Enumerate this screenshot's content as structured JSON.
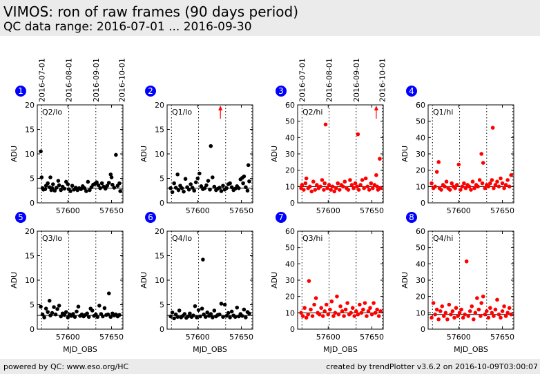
{
  "header": {
    "title": "VIMOS: ron of raw frames (90 days period)",
    "subtitle": "QC data range: 2016-07-01 ... 2016-09-30"
  },
  "footer": {
    "left": "powered by QC: www.eso.org/HC",
    "right": "created by trendPlotter v3.6.2 on 2016-10-09T03:00:07"
  },
  "colors": {
    "lo_series": "#000000",
    "hi_series": "#ff0000",
    "badge": "#0000ff",
    "header_bg": "#ebebeb"
  },
  "chart_data": [
    {
      "type": "scatter",
      "panel": "1",
      "label": "Q2/lo",
      "ylabel": "ADU",
      "xlabel": "",
      "xlim": [
        57565,
        57663
      ],
      "ylim": [
        0,
        20
      ],
      "xticks": [
        57600,
        57650
      ],
      "yticks": [
        0,
        5,
        10,
        15,
        20
      ],
      "top_dates": [
        "2016-07-01",
        "2016-08-01",
        "2016-09-01",
        "2016-10-01"
      ],
      "date_mjd": [
        57570,
        57601,
        57632,
        57662
      ],
      "reference": 3,
      "color": "#000000",
      "x": [
        57569,
        57570,
        57571,
        57572,
        57574,
        57575,
        57577,
        57579,
        57580,
        57581,
        57582,
        57583,
        57585,
        57587,
        57589,
        57590,
        57592,
        57594,
        57596,
        57598,
        57600,
        57601,
        57603,
        57605,
        57607,
        57609,
        57611,
        57613,
        57615,
        57617,
        57619,
        57621,
        57623,
        57625,
        57627,
        57629,
        57631,
        57633,
        57635,
        57637,
        57639,
        57641,
        57643,
        57645,
        57647,
        57649,
        57650,
        57651,
        57653,
        57655,
        57657,
        57659,
        57660
      ],
      "y": [
        10.5,
        5.2,
        3.0,
        2.7,
        2.8,
        3.5,
        4.0,
        3.2,
        5.2,
        2.6,
        3.0,
        3.8,
        2.5,
        3.1,
        4.5,
        3.6,
        2.6,
        3.3,
        2.9,
        4.3,
        3.8,
        2.8,
        2.4,
        3.5,
        2.7,
        3.1,
        2.6,
        3.0,
        2.8,
        3.4,
        3.0,
        2.4,
        4.3,
        2.6,
        3.2,
        3.7,
        3.9,
        4.2,
        3.6,
        3.0,
        4.0,
        3.3,
        2.9,
        3.5,
        4.1,
        5.8,
        5.2,
        3.7,
        3.1,
        9.8,
        3.5,
        4.0,
        2.4
      ]
    },
    {
      "type": "scatter",
      "panel": "2",
      "label": "Q1/lo",
      "ylabel": "ADU",
      "xlabel": "",
      "xlim": [
        57565,
        57663
      ],
      "ylim": [
        0,
        20
      ],
      "xticks": [
        57600,
        57650
      ],
      "yticks": [
        0,
        5,
        10,
        15,
        20
      ],
      "top_dates": [],
      "date_mjd": [
        57570,
        57601,
        57632,
        57662
      ],
      "reference": 3,
      "color": "#000000",
      "outlier_arrow": {
        "x": 57626,
        "direction": "up"
      },
      "x": [
        57569,
        57571,
        57573,
        57575,
        57577,
        57578,
        57580,
        57582,
        57584,
        57586,
        57588,
        57590,
        57592,
        57594,
        57596,
        57598,
        57600,
        57602,
        57604,
        57606,
        57608,
        57610,
        57612,
        57614,
        57615,
        57617,
        57619,
        57621,
        57623,
        57625,
        57627,
        57629,
        57631,
        57633,
        57635,
        57637,
        57639,
        57641,
        57643,
        57645,
        57647,
        57649,
        57651,
        57652,
        57653,
        57655,
        57657,
        57658,
        57659
      ],
      "y": [
        3.0,
        2.2,
        4.0,
        3.1,
        5.8,
        2.6,
        3.5,
        3.0,
        2.3,
        4.9,
        3.2,
        2.7,
        3.8,
        3.1,
        2.5,
        4.2,
        5.0,
        6.0,
        3.4,
        2.8,
        3.0,
        3.6,
        4.5,
        2.7,
        11.6,
        5.2,
        3.3,
        2.6,
        2.9,
        3.1,
        2.4,
        3.5,
        2.7,
        3.0,
        3.8,
        4.0,
        3.2,
        2.6,
        2.9,
        3.4,
        3.0,
        4.8,
        5.1,
        4.0,
        5.4,
        3.2,
        2.5,
        7.7,
        4.4
      ]
    },
    {
      "type": "scatter",
      "panel": "3",
      "label": "Q2/hi",
      "ylabel": "ADU",
      "xlabel": "",
      "xlim": [
        57565,
        57663
      ],
      "ylim": [
        0,
        60
      ],
      "xticks": [
        57600,
        57650
      ],
      "yticks": [
        0,
        10,
        20,
        30,
        40,
        50,
        60
      ],
      "top_dates": [
        "2016-07-01",
        "2016-08-01",
        "2016-09-01",
        "2016-10-01"
      ],
      "date_mjd": [
        57570,
        57601,
        57632,
        57662
      ],
      "reference": 10,
      "color": "#ff0000",
      "outlier_arrow": {
        "x": 57655,
        "direction": "up"
      },
      "x": [
        57569,
        57570,
        57572,
        57574,
        57575,
        57577,
        57579,
        57581,
        57583,
        57585,
        57587,
        57589,
        57591,
        57593,
        57595,
        57596,
        57597,
        57599,
        57601,
        57603,
        57605,
        57607,
        57609,
        57611,
        57613,
        57615,
        57617,
        57619,
        57621,
        57623,
        57625,
        57627,
        57629,
        57631,
        57633,
        57634,
        57635,
        57637,
        57639,
        57641,
        57643,
        57645,
        57647,
        57649,
        57651,
        57653,
        57655,
        57656,
        57657,
        57659,
        57660
      ],
      "y": [
        9,
        11,
        8,
        12,
        15,
        9,
        10,
        7,
        13,
        8,
        11,
        9,
        10,
        14,
        8,
        12,
        48,
        9,
        11,
        8,
        10,
        7,
        9,
        12,
        8,
        11,
        10,
        13,
        9,
        8,
        14,
        11,
        9,
        12,
        10,
        42,
        8,
        11,
        14,
        9,
        15,
        10,
        8,
        12,
        9,
        11,
        17,
        10,
        8,
        27,
        9
      ]
    },
    {
      "type": "scatter",
      "panel": "4",
      "label": "Q1/hi",
      "ylabel": "ADU",
      "xlabel": "",
      "xlim": [
        57565,
        57663
      ],
      "ylim": [
        0,
        60
      ],
      "xticks": [
        57600,
        57650
      ],
      "yticks": [
        0,
        10,
        20,
        30,
        40,
        50,
        60
      ],
      "top_dates": [],
      "date_mjd": [
        57570,
        57601,
        57632,
        57662
      ],
      "reference": 10,
      "color": "#ff0000",
      "x": [
        57569,
        57571,
        57573,
        57575,
        57577,
        57578,
        57580,
        57582,
        57584,
        57586,
        57588,
        57590,
        57592,
        57594,
        57596,
        57598,
        57600,
        57602,
        57604,
        57606,
        57608,
        57610,
        57612,
        57614,
        57616,
        57618,
        57620,
        57622,
        57624,
        57626,
        57627,
        57628,
        57630,
        57632,
        57634,
        57636,
        57638,
        57639,
        57640,
        57642,
        57644,
        57646,
        57648,
        57650,
        57652,
        57654,
        57656,
        57658,
        57660
      ],
      "y": [
        12,
        9,
        10,
        19,
        25,
        9,
        8,
        11,
        10,
        13,
        9,
        8,
        12,
        10,
        9,
        11,
        23.5,
        8,
        10,
        12,
        9,
        11,
        10,
        8,
        13,
        9,
        11,
        10,
        14,
        30,
        12,
        24.5,
        9,
        11,
        10,
        12,
        14,
        46,
        9,
        11,
        13,
        10,
        15,
        12,
        9,
        11,
        14,
        10,
        17
      ]
    },
    {
      "type": "scatter",
      "panel": "5",
      "label": "Q3/lo",
      "ylabel": "ADU",
      "xlabel": "MJD_OBS",
      "xlim": [
        57565,
        57663
      ],
      "ylim": [
        0,
        20
      ],
      "xticks": [
        57600,
        57650
      ],
      "yticks": [
        0,
        5,
        10,
        15,
        20
      ],
      "top_dates": [],
      "date_mjd": [
        57570,
        57601,
        57632,
        57662
      ],
      "reference": 2.8,
      "color": "#000000",
      "x": [
        57569,
        57571,
        57573,
        57575,
        57577,
        57579,
        57580,
        57582,
        57584,
        57586,
        57588,
        57590,
        57592,
        57594,
        57596,
        57598,
        57600,
        57602,
        57604,
        57606,
        57608,
        57610,
        57612,
        57614,
        57616,
        57618,
        57620,
        57622,
        57624,
        57626,
        57628,
        57630,
        57632,
        57634,
        57636,
        57638,
        57640,
        57642,
        57644,
        57646,
        57647,
        57649,
        57651,
        57653,
        57655,
        57657,
        57659
      ],
      "y": [
        4.6,
        3.0,
        2.4,
        4.2,
        3.5,
        5.8,
        2.8,
        3.3,
        4.5,
        3.0,
        4.1,
        4.8,
        2.6,
        3.2,
        2.9,
        3.5,
        2.4,
        3.0,
        2.7,
        3.1,
        2.5,
        3.6,
        4.6,
        2.7,
        3.0,
        2.6,
        2.9,
        3.2,
        2.5,
        4.2,
        3.8,
        2.7,
        3.0,
        2.5,
        4.8,
        3.1,
        2.6,
        4.3,
        2.9,
        3.0,
        7.3,
        2.5,
        3.2,
        2.8,
        3.0,
        2.6,
        2.9
      ]
    },
    {
      "type": "scatter",
      "panel": "6",
      "label": "Q4/lo",
      "ylabel": "ADU",
      "xlabel": "MJD_OBS",
      "xlim": [
        57565,
        57663
      ],
      "ylim": [
        0,
        20
      ],
      "xticks": [
        57600,
        57650
      ],
      "yticks": [
        0,
        5,
        10,
        15,
        20
      ],
      "top_dates": [],
      "date_mjd": [
        57570,
        57601,
        57632,
        57662
      ],
      "reference": 2.8,
      "color": "#000000",
      "x": [
        57569,
        57571,
        57573,
        57575,
        57577,
        57579,
        57581,
        57583,
        57585,
        57587,
        57589,
        57591,
        57593,
        57595,
        57597,
        57599,
        57601,
        57603,
        57605,
        57606,
        57607,
        57609,
        57611,
        57613,
        57615,
        57617,
        57619,
        57621,
        57623,
        57625,
        57627,
        57629,
        57631,
        57633,
        57635,
        57637,
        57639,
        57641,
        57643,
        57645,
        57647,
        57649,
        57651,
        57653,
        57655,
        57657,
        57659
      ],
      "y": [
        2.6,
        3.4,
        2.2,
        3.0,
        2.5,
        3.8,
        2.4,
        2.7,
        3.1,
        2.3,
        2.6,
        3.2,
        2.5,
        2.8,
        4.7,
        2.4,
        3.9,
        2.6,
        4.2,
        14.2,
        3.0,
        2.5,
        3.4,
        2.7,
        3.1,
        2.4,
        3.8,
        2.6,
        2.9,
        3.0,
        5.2,
        2.5,
        5.0,
        2.7,
        3.3,
        2.4,
        3.6,
        2.8,
        2.5,
        4.4,
        2.6,
        3.1,
        2.7,
        4.0,
        2.4,
        3.5,
        3.2
      ]
    },
    {
      "type": "scatter",
      "panel": "7",
      "label": "Q3/hi",
      "ylabel": "ADU",
      "xlabel": "MJD_OBS",
      "xlim": [
        57565,
        57663
      ],
      "ylim": [
        0,
        60
      ],
      "xticks": [
        57600,
        57650
      ],
      "yticks": [
        0,
        10,
        20,
        30,
        40,
        50,
        60
      ],
      "top_dates": [],
      "date_mjd": [
        57570,
        57601,
        57632,
        57662
      ],
      "reference": 10,
      "color": "#ff0000",
      "x": [
        57569,
        57571,
        57573,
        57575,
        57577,
        57578,
        57580,
        57582,
        57584,
        57586,
        57588,
        57590,
        57592,
        57594,
        57596,
        57598,
        57600,
        57602,
        57604,
        57606,
        57608,
        57610,
        57612,
        57614,
        57616,
        57618,
        57620,
        57622,
        57624,
        57626,
        57628,
        57630,
        57632,
        57634,
        57636,
        57638,
        57640,
        57642,
        57644,
        57646,
        57648,
        57650,
        57652,
        57654,
        57656,
        57658,
        57660
      ],
      "y": [
        10,
        8,
        13,
        7,
        9,
        29.5,
        12,
        8,
        15,
        19,
        10,
        9,
        13,
        8,
        11,
        15,
        9,
        12,
        17,
        8,
        10,
        20,
        9,
        14,
        11,
        8,
        12,
        16,
        9,
        10,
        13,
        8,
        11,
        9,
        15,
        10,
        12,
        16,
        8,
        11,
        13,
        9,
        16,
        10,
        12,
        8,
        11
      ]
    },
    {
      "type": "scatter",
      "panel": "8",
      "label": "Q4/hi",
      "ylabel": "ADU",
      "xlabel": "MJD_OBS",
      "xlim": [
        57565,
        57663
      ],
      "ylim": [
        0,
        60
      ],
      "xticks": [
        57600,
        57650
      ],
      "yticks": [
        0,
        10,
        20,
        30,
        40,
        50,
        60
      ],
      "top_dates": [],
      "date_mjd": [
        57570,
        57601,
        57632,
        57662
      ],
      "reference": 9,
      "color": "#ff0000",
      "x": [
        57569,
        57571,
        57573,
        57575,
        57577,
        57579,
        57581,
        57583,
        57585,
        57587,
        57589,
        57591,
        57593,
        57595,
        57597,
        57599,
        57601,
        57603,
        57605,
        57607,
        57609,
        57611,
        57613,
        57615,
        57617,
        57619,
        57621,
        57623,
        57625,
        57626,
        57628,
        57630,
        57632,
        57634,
        57636,
        57638,
        57640,
        57642,
        57644,
        57646,
        57648,
        57650,
        57652,
        57654,
        57656,
        57658,
        57660
      ],
      "y": [
        7,
        16,
        9,
        12,
        6,
        11,
        14,
        8,
        10,
        6,
        15,
        9,
        11,
        7,
        13,
        8,
        10,
        12,
        7,
        9,
        41.5,
        8,
        11,
        14,
        6,
        10,
        19,
        12,
        8,
        16,
        20,
        9,
        11,
        7,
        13,
        10,
        8,
        12,
        18,
        9,
        7,
        11,
        14,
        8,
        10,
        13,
        9
      ]
    }
  ]
}
